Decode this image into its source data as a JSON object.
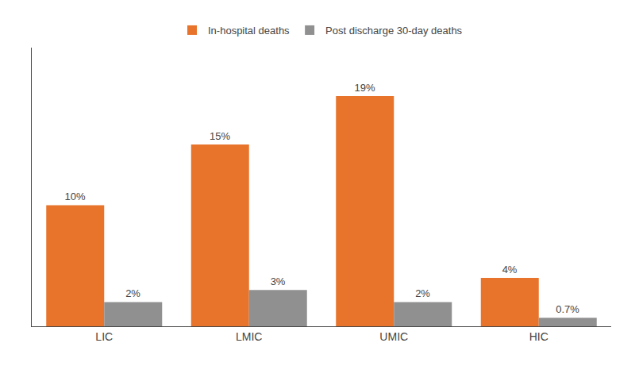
{
  "chart_data": {
    "type": "bar",
    "categories": [
      "LIC",
      "LMIC",
      "UMIC",
      "HIC"
    ],
    "series": [
      {
        "name": "In-hospital deaths",
        "color": "#E8732A",
        "values": [
          10,
          15,
          19,
          4
        ],
        "value_labels": [
          "10%",
          "15%",
          "19%",
          "4%"
        ]
      },
      {
        "name": "Post discharge 30-day deaths",
        "color": "#909090",
        "values": [
          2,
          3,
          2,
          0.7
        ],
        "value_labels": [
          "2%",
          "3%",
          "2%",
          "0.7%"
        ]
      }
    ],
    "ylim": [
      0,
      23
    ],
    "data_labels": true,
    "tick_labels": "x",
    "legend": "top",
    "grid": false
  }
}
